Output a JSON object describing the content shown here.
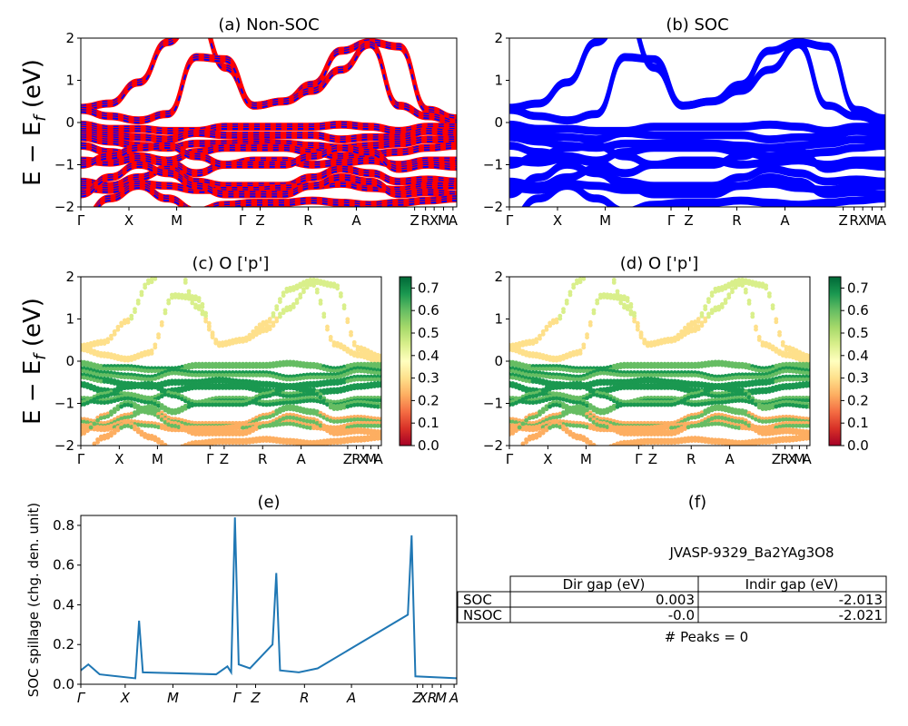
{
  "chart_data": [
    {
      "panel": "a",
      "type": "line",
      "title": "(a) Non-SOC",
      "ylabel": "E − E_f (eV)",
      "ylim": [
        -2,
        2
      ],
      "yticks": [
        "2",
        "1",
        "0",
        "−1",
        "−2"
      ],
      "xticks": [
        "Γ",
        "X",
        "M",
        "Γ",
        "Z",
        "R",
        "A",
        "Z",
        "R",
        "X",
        "M",
        "A"
      ],
      "series": [
        {
          "color": "#ff0000",
          "style": "solid"
        },
        {
          "color": "#0000ff",
          "style": "dashed"
        }
      ],
      "bands": [
        [
          0.35,
          0.45,
          0.95,
          1.9,
          2.6,
          1.3,
          0.4,
          0.5,
          0.9,
          1.7,
          1.9,
          1.8,
          0.3,
          0.1
        ],
        [
          0.3,
          0.15,
          0.05,
          0.2,
          1.55,
          1.5,
          0.4,
          0.5,
          0.75,
          1.25,
          1.85,
          0.4,
          0.15,
          0.0
        ],
        [
          -0.05,
          -0.15,
          -0.15,
          -0.2,
          -0.2,
          -0.1,
          -0.1,
          -0.1,
          -0.1,
          -0.05,
          -0.1,
          -0.2,
          -0.1,
          -0.1
        ],
        [
          -0.2,
          -0.3,
          -0.35,
          -0.4,
          -0.25,
          -0.3,
          -0.3,
          -0.3,
          -0.3,
          -0.4,
          -0.35,
          -0.35,
          -0.2,
          -0.25
        ],
        [
          -0.35,
          -0.45,
          -0.55,
          -0.6,
          -0.5,
          -0.5,
          -0.45,
          -0.5,
          -0.55,
          -0.6,
          -0.55,
          -0.5,
          -0.4,
          -0.4
        ],
        [
          -0.55,
          -0.7,
          -0.8,
          -0.9,
          -0.7,
          -0.6,
          -0.6,
          -0.6,
          -0.7,
          -0.8,
          -0.75,
          -0.7,
          -0.6,
          -0.55
        ],
        [
          -0.9,
          -0.95,
          -0.85,
          -0.95,
          -1.2,
          -1.0,
          -0.9,
          -0.9,
          -1.0,
          -0.95,
          -0.9,
          -1.0,
          -0.9,
          -0.9
        ],
        [
          -1.0,
          -0.8,
          -0.6,
          -0.55,
          -0.8,
          -1.0,
          -1.0,
          -1.0,
          -0.8,
          -0.6,
          -0.7,
          -1.1,
          -1.0,
          -1.05
        ],
        [
          -1.4,
          -1.5,
          -1.3,
          -1.1,
          -1.4,
          -1.5,
          -1.5,
          -1.5,
          -1.3,
          -1.1,
          -1.2,
          -1.4,
          -1.35,
          -1.4
        ],
        [
          -1.55,
          -1.6,
          -1.45,
          -1.5,
          -1.6,
          -1.6,
          -1.6,
          -1.55,
          -1.5,
          -1.45,
          -1.55,
          -1.6,
          -1.5,
          -1.5
        ],
        [
          -1.7,
          -1.3,
          -1.0,
          -1.2,
          -1.5,
          -1.7,
          -1.7,
          -1.7,
          -1.5,
          -1.3,
          -1.4,
          -1.7,
          -1.65,
          -1.7
        ],
        [
          -2.3,
          -1.8,
          -1.5,
          -1.8,
          -2.1,
          -1.95,
          -1.9,
          -1.9,
          -1.85,
          -1.9,
          -1.95,
          -1.9,
          -1.85,
          -1.8
        ]
      ]
    },
    {
      "panel": "b",
      "type": "line",
      "title": "(b) SOC",
      "ylim": [
        -2,
        2
      ],
      "yticks": [
        "2",
        "1",
        "0",
        "−1",
        "−2"
      ],
      "xticks": [
        "Γ",
        "X",
        "M",
        "Γ",
        "Z",
        "R",
        "A",
        "Z",
        "R",
        "X",
        "M",
        "A"
      ],
      "series": [
        {
          "color": "#0000ff",
          "style": "solid"
        }
      ],
      "bands": "same band paths as panel (a)"
    },
    {
      "panel": "c",
      "type": "scatter",
      "title": "(c)  O ['p']",
      "ylabel": "E − E_f (eV)",
      "ylim": [
        -2,
        2
      ],
      "yticks": [
        "2",
        "1",
        "0",
        "−1",
        "−2"
      ],
      "xticks": [
        "Γ",
        "X",
        "M",
        "Γ",
        "Z",
        "R",
        "A",
        "Z",
        "R",
        "X",
        "M",
        "A"
      ],
      "colorbar": {
        "range": [
          0.0,
          0.75
        ],
        "ticks": [
          "0.7",
          "0.6",
          "0.5",
          "0.4",
          "0.3",
          "0.2",
          "0.1",
          "0.0"
        ],
        "colormap": "RdYlGn"
      }
    },
    {
      "panel": "d",
      "type": "scatter",
      "title": "(d) O ['p']",
      "ylim": [
        -2,
        2
      ],
      "yticks": [
        "2",
        "1",
        "0",
        "−1",
        "−2"
      ],
      "xticks": [
        "Γ",
        "X",
        "M",
        "Γ",
        "Z",
        "R",
        "A",
        "Z",
        "R",
        "X",
        "M",
        "A"
      ],
      "colorbar": {
        "range": [
          0.0,
          0.75
        ],
        "ticks": [
          "0.7",
          "0.6",
          "0.5",
          "0.4",
          "0.3",
          "0.2",
          "0.1",
          "0.0"
        ],
        "colormap": "RdYlGn"
      }
    },
    {
      "panel": "e",
      "type": "line",
      "title": "(e)",
      "ylabel": "SOC spillage (chg. den. unit)",
      "ylim": [
        0,
        0.85
      ],
      "yticks": [
        "0.8",
        "0.6",
        "0.4",
        "0.2",
        "0.0"
      ],
      "xticks": [
        "Γ",
        "X",
        "M",
        "Γ",
        "Z",
        "R",
        "A",
        "Z",
        "X",
        "R",
        "M",
        "A"
      ],
      "series": [
        {
          "color": "#1f77b4",
          "peaks": [
            {
              "x": 0.0,
              "y": 0.07
            },
            {
              "x": 0.02,
              "y": 0.1
            },
            {
              "x": 0.05,
              "y": 0.05
            },
            {
              "x": 0.145,
              "y": 0.03
            },
            {
              "x": 0.155,
              "y": 0.32
            },
            {
              "x": 0.165,
              "y": 0.06
            },
            {
              "x": 0.36,
              "y": 0.05
            },
            {
              "x": 0.39,
              "y": 0.09
            },
            {
              "x": 0.4,
              "y": 0.06
            },
            {
              "x": 0.41,
              "y": 0.84
            },
            {
              "x": 0.42,
              "y": 0.1
            },
            {
              "x": 0.45,
              "y": 0.08
            },
            {
              "x": 0.51,
              "y": 0.2
            },
            {
              "x": 0.52,
              "y": 0.56
            },
            {
              "x": 0.53,
              "y": 0.07
            },
            {
              "x": 0.58,
              "y": 0.06
            },
            {
              "x": 0.63,
              "y": 0.08
            },
            {
              "x": 0.87,
              "y": 0.35
            },
            {
              "x": 0.88,
              "y": 0.75
            },
            {
              "x": 0.89,
              "y": 0.04
            },
            {
              "x": 1.0,
              "y": 0.03
            }
          ]
        }
      ]
    },
    {
      "panel": "f",
      "type": "table",
      "title": "(f)",
      "material": "JVASP-9329_Ba2YAg3O8",
      "columns": [
        "Dir gap (eV)",
        "Indir gap (eV)"
      ],
      "rows": [
        {
          "label": "SOC",
          "values": [
            "0.003",
            "-2.013"
          ]
        },
        {
          "label": "NSOC",
          "values": [
            "-0.0",
            "-2.021"
          ]
        }
      ],
      "note": "# Peaks = 0"
    }
  ]
}
